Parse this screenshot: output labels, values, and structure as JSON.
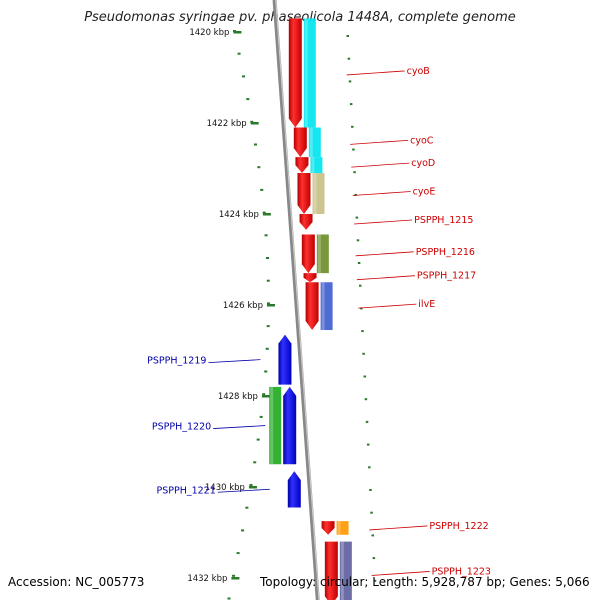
{
  "title": "Pseudomonas syringae pv. phaseolicola 1448A, complete genome",
  "footer": {
    "accession": "Accession: NC_005773",
    "summary": "Topology: circular; Length: 5,928,787 bp; Genes: 5,066"
  },
  "scale": {
    "unit": "kbp",
    "ticks": [
      {
        "kbp": 1420,
        "label": "1420 kbp"
      },
      {
        "kbp": 1422,
        "label": "1422 kbp"
      },
      {
        "kbp": 1424,
        "label": "1424 kbp"
      },
      {
        "kbp": 1426,
        "label": "1426 kbp"
      },
      {
        "kbp": 1428,
        "label": "1428 kbp"
      },
      {
        "kbp": 1430,
        "label": "1430 kbp"
      },
      {
        "kbp": 1432,
        "label": "1432 kbp"
      }
    ]
  },
  "colors": {
    "forward_label": "#cc0000",
    "reverse_label": "#0000aa",
    "forward_gene": "#ee0000",
    "reverse_gene": "#0000ee",
    "backbone": "#888888",
    "tick": "#2a7a2a"
  },
  "genes": [
    {
      "name": "cyoB",
      "strand": "forward",
      "start_kbp": 1419.7,
      "end_kbp": 1422.1,
      "cog_color": "#00e5ee"
    },
    {
      "name": "cyoC",
      "strand": "forward",
      "start_kbp": 1422.1,
      "end_kbp": 1422.75,
      "cog_color": "#00e5ee"
    },
    {
      "name": "cyoD",
      "strand": "forward",
      "start_kbp": 1422.75,
      "end_kbp": 1423.1,
      "cog_color": "#00e5ee"
    },
    {
      "name": "cyoE",
      "strand": "forward",
      "start_kbp": 1423.1,
      "end_kbp": 1424.0,
      "cog_color": "#c8c088"
    },
    {
      "name": "PSPPH_1215",
      "strand": "forward",
      "start_kbp": 1424.0,
      "end_kbp": 1424.35,
      "cog_color": ""
    },
    {
      "name": "PSPPH_1216",
      "strand": "forward",
      "start_kbp": 1424.45,
      "end_kbp": 1425.3,
      "cog_color": "#6f8f2a"
    },
    {
      "name": "PSPPH_1217",
      "strand": "forward",
      "start_kbp": 1425.3,
      "end_kbp": 1425.5,
      "cog_color": ""
    },
    {
      "name": "ilvE",
      "strand": "forward",
      "start_kbp": 1425.5,
      "end_kbp": 1426.55,
      "cog_color": "#4060d0"
    },
    {
      "name": "PSPPH_1219",
      "strand": "reverse",
      "start_kbp": 1426.65,
      "end_kbp": 1427.75,
      "cog_color": ""
    },
    {
      "name": "PSPPH_1220",
      "strand": "reverse",
      "start_kbp": 1427.8,
      "end_kbp": 1429.5,
      "cog_color": "#22aa22"
    },
    {
      "name": "PSPPH_1221",
      "strand": "reverse",
      "start_kbp": 1429.65,
      "end_kbp": 1430.45,
      "cog_color": ""
    },
    {
      "name": "PSPPH_1222",
      "strand": "forward",
      "start_kbp": 1430.75,
      "end_kbp": 1431.05,
      "cog_color": "#ff9900"
    },
    {
      "name": "PSPPH_1223",
      "strand": "forward",
      "start_kbp": 1431.2,
      "end_kbp": 1432.6,
      "cog_color": "#6060a0"
    }
  ]
}
